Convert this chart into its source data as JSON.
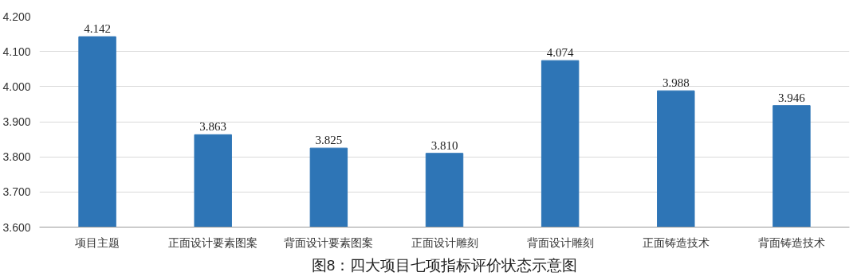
{
  "chart_data": {
    "type": "bar",
    "title": "图8：四大项目七项指标评价状态示意图",
    "categories": [
      "项目主题",
      "正面设计要素图案",
      "背面设计要素图案",
      "正面设计雕刻",
      "背面设计雕刻",
      "正面铸造技术",
      "背面铸造技术"
    ],
    "values": [
      4.142,
      3.863,
      3.825,
      3.81,
      4.074,
      3.988,
      3.946
    ],
    "value_labels": [
      "4.142",
      "3.863",
      "3.825",
      "3.810",
      "4.074",
      "3.988",
      "3.946"
    ],
    "color": "#2e75b6",
    "ylim": [
      3.6,
      4.2
    ],
    "yticks": [
      {
        "value": 3.6,
        "label": "3.600"
      },
      {
        "value": 3.7,
        "label": "3.700"
      },
      {
        "value": 3.8,
        "label": "3.800"
      },
      {
        "value": 3.9,
        "label": "3.900"
      },
      {
        "value": 4.0,
        "label": "4.000"
      },
      {
        "value": 4.1,
        "label": "4.100"
      },
      {
        "value": 4.2,
        "label": "4.200"
      }
    ],
    "grid": "y"
  }
}
